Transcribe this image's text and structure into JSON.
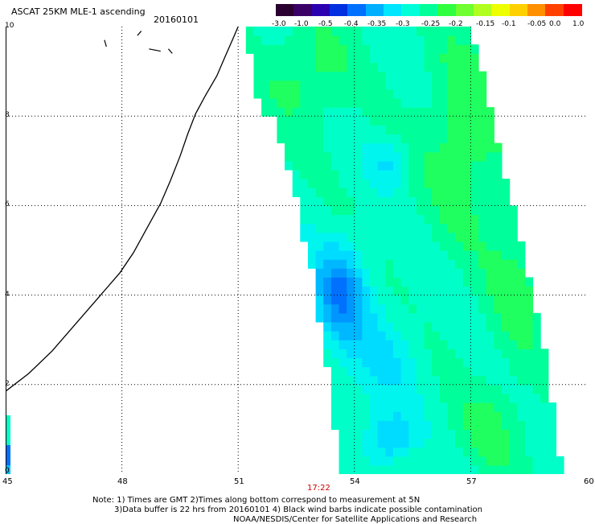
{
  "header": {
    "title": "ASCAT 25KM MLE-1 ascending",
    "date": "20160101"
  },
  "colorbar": {
    "colors": [
      "#2a0030",
      "#3a0066",
      "#2a00b0",
      "#0030e0",
      "#0070ff",
      "#00b0ff",
      "#00e6ff",
      "#00ffd8",
      "#00ff99",
      "#30ff40",
      "#70ff30",
      "#b0ff20",
      "#eeff00",
      "#ffd000",
      "#ff9000",
      "#ff4000",
      "#ff0000"
    ],
    "labels": [
      "-3.0",
      "-1.0",
      "-0.5",
      "-0.4",
      "-0.35",
      "-0.3",
      "-0.25",
      "-0.2",
      "-0.15",
      "-0.1",
      "-0.05",
      "0.0",
      "1.0"
    ]
  },
  "map": {
    "y_labels": [
      "10",
      "8",
      "6",
      "4",
      "2",
      "0"
    ],
    "x_labels": [
      "45",
      "48",
      "51",
      "54",
      "57",
      "60"
    ],
    "lat_range": [
      0,
      10
    ],
    "lon_range": [
      45,
      60
    ],
    "grid": "dotted",
    "pass_time": "17:22",
    "pass_time_color": "#cc0000"
  },
  "notes": {
    "line1": "Note: 1) Times are GMT 2)Times along bottom correspond to measurement at 5N",
    "line2": "3)Data buffer is 22 hrs from 20160101 4) Black wind barbs indicate possible contamination",
    "line3": "NOAA/NESDIS/Center for Satellite Applications and Research"
  }
}
